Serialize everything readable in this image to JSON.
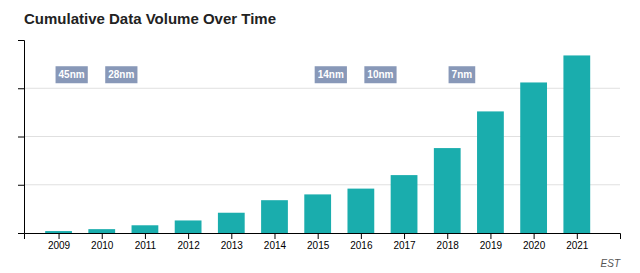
{
  "chart_data": {
    "type": "bar",
    "title": "Cumulative Data Volume Over Time",
    "x": [
      2009,
      2010,
      2011,
      2012,
      2013,
      2014,
      2015,
      2016,
      2017,
      2018,
      2019,
      2020,
      2021
    ],
    "values": [
      1.0,
      2.0,
      4.0,
      6.5,
      10.5,
      17.0,
      20.0,
      23.0,
      30.0,
      44.0,
      63.0,
      78.0,
      92.0
    ],
    "color": "#1aadad",
    "xlim": [
      2008.2,
      2022.0
    ],
    "xticks": [
      2009,
      2010,
      2011,
      2012,
      2013,
      2014,
      2015,
      2016,
      2017,
      2018,
      2019,
      2020,
      2021
    ],
    "ylim": [
      0,
      100
    ],
    "yticks": [
      25,
      50,
      75
    ],
    "grid": true,
    "tick_labels": "x",
    "xlabel": "EST",
    "annotations": [
      {
        "text": "45nm",
        "x": 2009.0
      },
      {
        "text": "28nm",
        "x": 2010.15
      },
      {
        "text": "14nm",
        "x": 2015.0
      },
      {
        "text": "10nm",
        "x": 2016.15
      },
      {
        "text": "7nm",
        "x": 2018.1
      }
    ]
  }
}
